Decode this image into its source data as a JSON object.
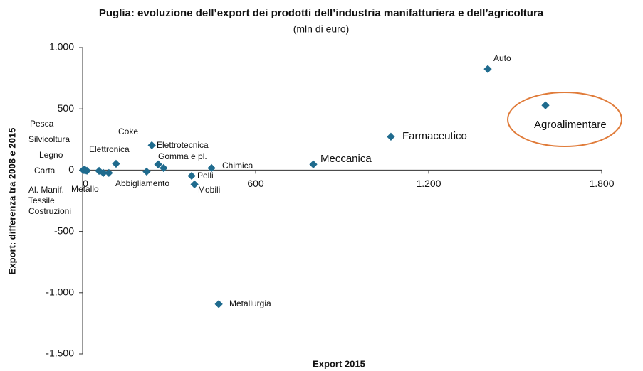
{
  "chart_data": {
    "type": "scatter",
    "title": "Puglia: evoluzione dell’export dei prodotti dell’industria manifatturiera e dell’agricoltura",
    "subtitle": "(mln di euro)",
    "x_label": "Export 2015",
    "y_label": "Export: differenza tra 2008 e 2015",
    "color": "#1f6b8e",
    "xlim": [
      0,
      1800
    ],
    "xticks": [
      0,
      600,
      {
        "value": 1200,
        "label": "1.200"
      },
      {
        "value": 1800,
        "label": "1.800"
      }
    ],
    "ylim": [
      -1500,
      1000
    ],
    "yticks": [
      {
        "value": 1000,
        "label": "1.000"
      },
      500,
      0,
      -500,
      {
        "value": -1000,
        "label": "-1.000"
      },
      {
        "value": -1500,
        "label": "-1.500"
      }
    ],
    "points": [
      {
        "name": "Auto",
        "x": 1405,
        "y": 825
      },
      {
        "name": "Agroalimentare",
        "x": 1605,
        "y": 529
      },
      {
        "name": "Farmaceutico",
        "x": 1069,
        "y": 273
      },
      {
        "name": "Meccanica",
        "x": 800,
        "y": 47
      },
      {
        "name": "Chimica",
        "x": 447,
        "y": 17
      },
      {
        "name": "Pelli",
        "x": 378,
        "y": -47
      },
      {
        "name": "Mobili",
        "x": 388,
        "y": -116
      },
      {
        "name": "Metallurgia",
        "x": 472,
        "y": -1093
      },
      {
        "name": "Elettrotecnica",
        "x": 240,
        "y": 203
      },
      {
        "name": "Gomma e pl.",
        "x": 262,
        "y": 47
      },
      {
        "name": "Coke",
        "x": 281,
        "y": 17
      },
      {
        "name": "Abbigliamento",
        "x": 222,
        "y": -12
      },
      {
        "name": "Elettronica",
        "x": 116,
        "y": 52
      },
      {
        "name": "Pesca",
        "x": 2,
        "y": 1
      },
      {
        "name": "Silvicoltura",
        "x": 5,
        "y": 0
      },
      {
        "name": "Legno",
        "x": 10,
        "y": -2
      },
      {
        "name": "Carta",
        "x": 8,
        "y": 2
      },
      {
        "name": "Al. Manif.",
        "x": 15,
        "y": -5
      },
      {
        "name": "Metallo",
        "x": 57,
        "y": -6
      },
      {
        "name": "Tessile",
        "x": 72,
        "y": -23
      },
      {
        "name": "Costruzioni",
        "x": 91,
        "y": -23
      }
    ]
  }
}
